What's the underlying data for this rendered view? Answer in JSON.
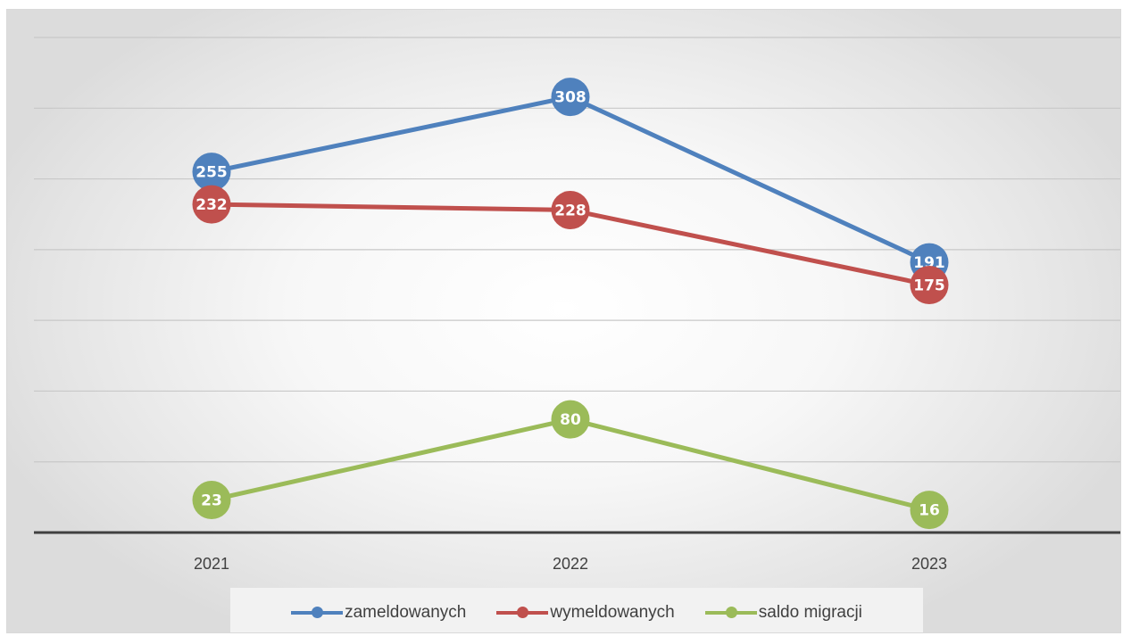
{
  "chart_data": {
    "type": "line",
    "categories": [
      "2021",
      "2022",
      "2023"
    ],
    "series": [
      {
        "name": "zameldowanych",
        "values": [
          255,
          308,
          191
        ],
        "color": "#4f81bd"
      },
      {
        "name": "wymeldowanych",
        "values": [
          232,
          228,
          175
        ],
        "color": "#c0504d"
      },
      {
        "name": "saldo migracji",
        "values": [
          23,
          80,
          16
        ],
        "color": "#9bbb59"
      }
    ],
    "ylim": [
      0,
      350
    ],
    "y_gridline_step": 50,
    "y_tick_labels_shown": false,
    "grid": true,
    "legend_position": "bottom",
    "data_labels": "inside circular markers",
    "title": "",
    "xlabel": "",
    "ylabel": ""
  }
}
